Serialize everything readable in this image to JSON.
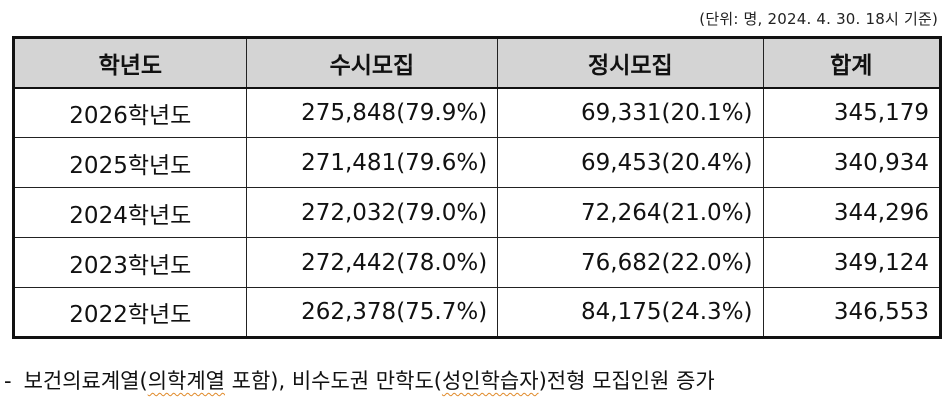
{
  "unit_note": "(단위: 명, 2024. 4. 30. 18시 기준)",
  "table": {
    "headers": [
      "학년도",
      "수시모집",
      "정시모집",
      "합계"
    ],
    "rows": [
      {
        "year": "2026학년도",
        "susi": "275,848(79.9%)",
        "jeongsi": "69,331(20.1%)",
        "total": "345,179"
      },
      {
        "year": "2025학년도",
        "susi": "271,481(79.6%)",
        "jeongsi": "69,453(20.4%)",
        "total": "340,934"
      },
      {
        "year": "2024학년도",
        "susi": "272,032(79.0%)",
        "jeongsi": "72,264(21.0%)",
        "total": "344,296"
      },
      {
        "year": "2023학년도",
        "susi": "272,442(78.0%)",
        "jeongsi": "76,682(22.0%)",
        "total": "349,124"
      },
      {
        "year": "2022학년도",
        "susi": "262,378(75.7%)",
        "jeongsi": "84,175(24.3%)",
        "total": "346,553"
      }
    ]
  },
  "footnote": {
    "dash": "-",
    "part1": "보건의료계열(",
    "part2_underlined": "의학계열",
    "part3": " 포함), 비수도권 만학도(",
    "part4_underlined": "성인학습자",
    "part5": ")전형 모집인원 증가"
  },
  "colors": {
    "header_bg": "#d4d4d4",
    "border": "#111111",
    "underline": "#e08a2a"
  }
}
